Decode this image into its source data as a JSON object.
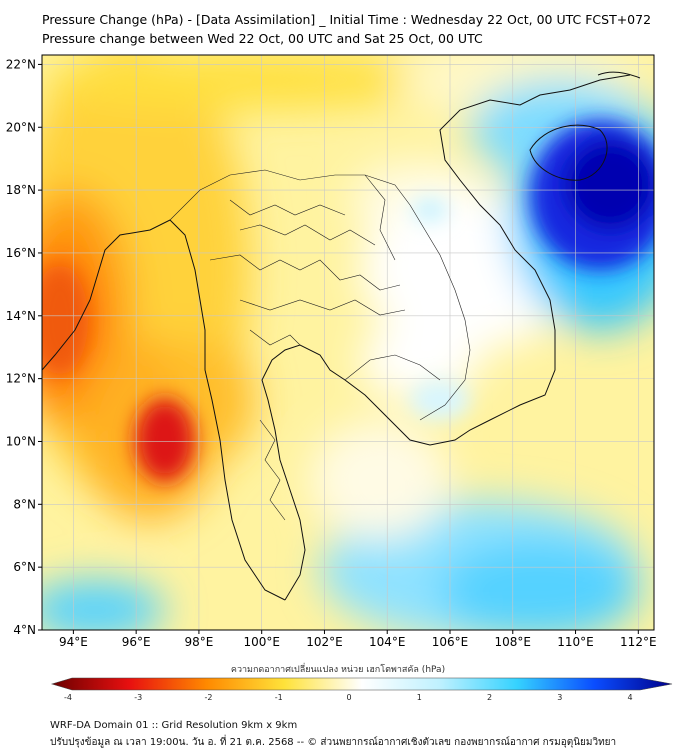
{
  "header": {
    "title_line1": "Pressure Change (hPa) - [Data Assimilation] _ Initial Time : Wednesday 22 Oct, 00 UTC FCST+072",
    "title_line2": "Pressure change between Wed 22 Oct, 00 UTC and Sat 25 Oct, 00 UTC"
  },
  "map": {
    "lat_labels": [
      "22°N",
      "20°N",
      "18°N",
      "16°N",
      "14°N",
      "12°N",
      "10°N",
      "8°N",
      "6°N",
      "4°N"
    ],
    "lon_labels": [
      "94°E",
      "96°E",
      "98°E",
      "100°E",
      "102°E",
      "104°E",
      "106°E",
      "108°E",
      "110°E",
      "112°E"
    ],
    "lat_range": [
      4,
      22.3
    ],
    "lon_range": [
      93,
      112.5
    ]
  },
  "colorbar": {
    "title": "ความกดอากาศเปลี่ยนแปลง หน่วย เฮกโตพาสคัล (hPa)",
    "range": [
      -4,
      4
    ],
    "tick_labels": [
      "-4",
      "-3",
      "-2",
      "-1",
      "0",
      "1",
      "2",
      "3",
      "4"
    ],
    "colors": {
      "neg4": "#6b0000",
      "neg3": "#e81010",
      "neg2": "#ff8a00",
      "neg1": "#ffe23a",
      "zero": "#ffffff",
      "pos1": "#bff1ff",
      "pos2": "#35d2ff",
      "pos3": "#0a4dff",
      "pos4": "#00008a"
    }
  },
  "footer": {
    "line1": "WRF-DA Domain 01 :: Grid Resolution 9km x 9km",
    "line2": "ปรับปรุงข้อมูล ณ เวลา 19:00น. วัน อ. ที่ 21 ต.ค. 2568 -- © ส่วนพยากรณ์อากาศเชิงตัวเลข กองพยากรณ์อากาศ กรมอุตุนิยมวิทยา"
  }
}
